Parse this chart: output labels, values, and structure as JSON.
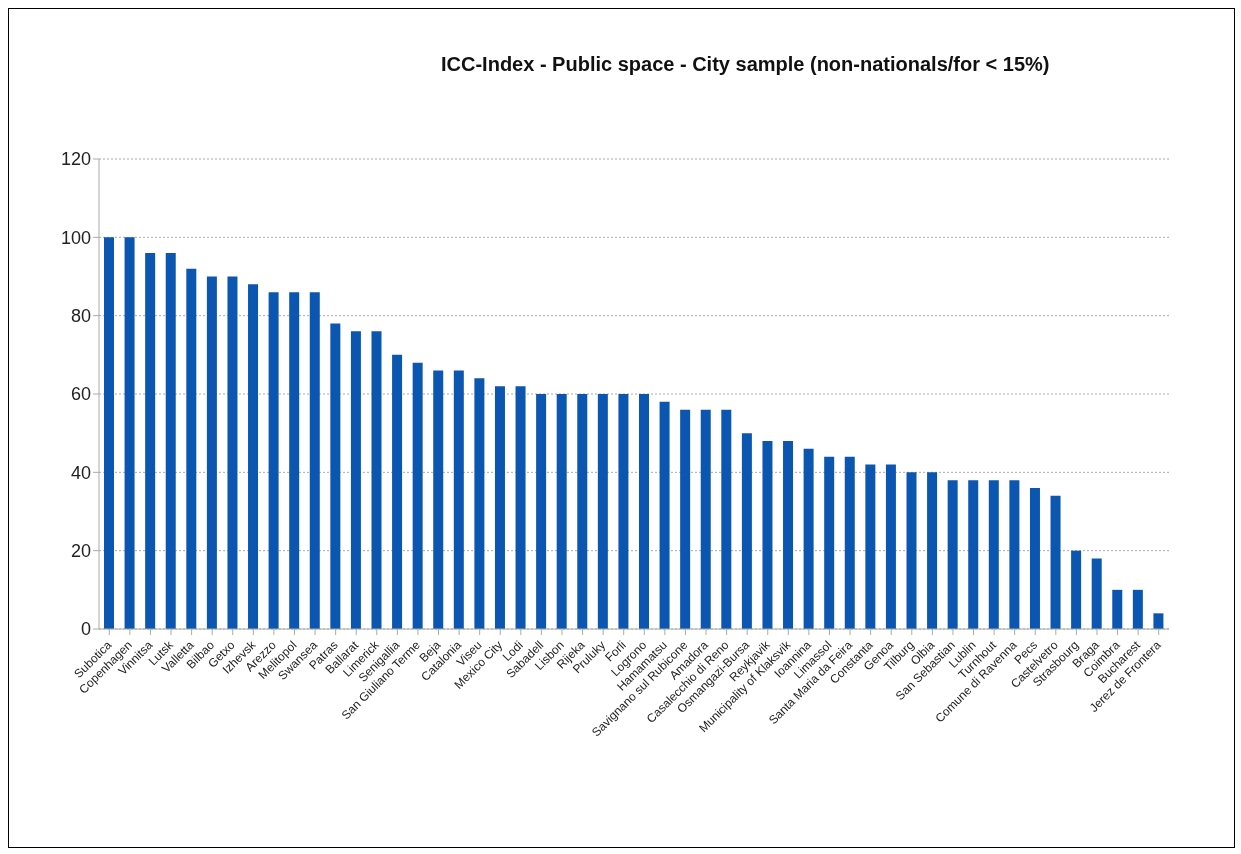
{
  "chart_data": {
    "type": "bar",
    "title": "ICC-Index - Public space - City sample  (non-nationals/for < 15%)",
    "categories": [
      "Subotica",
      "Copenhagen",
      "Vinnitsa",
      "Lutsk",
      "Valletta",
      "Bilbao",
      "Getxo",
      "Izhevsk",
      "Arezzo",
      "Melitopol",
      "Swansea",
      "Patras",
      "Ballarat",
      "Limerick",
      "Senigallia",
      "San Giuliano Terme",
      "Beja",
      "Catalonia",
      "Viseu",
      "Mexico City",
      "Lodi",
      "Sabadell",
      "Lisbon",
      "Rijeka",
      "Pruluky",
      "Forli",
      "Logrono",
      "Hamamatsu",
      "Savignano sul Rubicone",
      "Amadora",
      "Casalecchio di Reno",
      "Osmangazi-Bursa",
      "Reykjavik",
      "Municipality of Klaksvik",
      "Ioannina",
      "Limassol",
      "Santa Maria da Feira",
      "Constanta",
      "Genoa",
      "Tilburg",
      "Olbia",
      "San Sebastian",
      "Lublin",
      "Turnhout",
      "Comune di Ravenna",
      "Pecs",
      "Castelvetro",
      "Strasbourg",
      "Braga",
      "Coimbra",
      "Bucharest",
      "Jerez de Frontera"
    ],
    "values": [
      100,
      100,
      96,
      96,
      92,
      90,
      90,
      88,
      86,
      86,
      86,
      78,
      76,
      76,
      70,
      68,
      66,
      66,
      64,
      62,
      62,
      60,
      60,
      60,
      60,
      60,
      60,
      58,
      56,
      56,
      56,
      50,
      48,
      48,
      46,
      44,
      44,
      42,
      42,
      40,
      40,
      38,
      38,
      38,
      38,
      36,
      34,
      20,
      18,
      10,
      10,
      4
    ],
    "color": "#0a56b0",
    "ylim": [
      0,
      120
    ],
    "yticks": [
      0,
      20,
      40,
      60,
      80,
      100,
      120
    ],
    "grid": "y"
  }
}
